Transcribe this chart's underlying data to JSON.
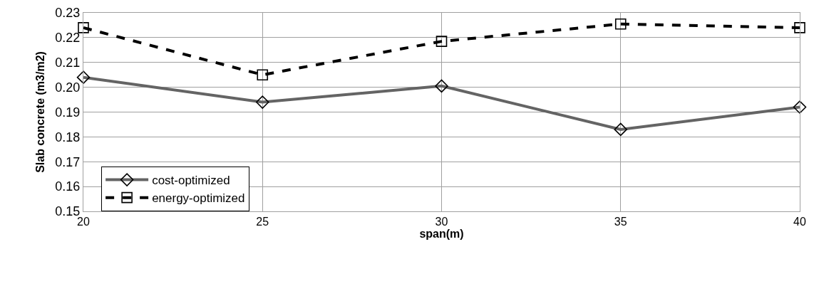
{
  "chart_data": {
    "type": "line",
    "xlabel": "span(m)",
    "ylabel": "Slab concrete (m3/m2)",
    "x": [
      20,
      25,
      30,
      35,
      40
    ],
    "series": [
      {
        "name": "cost-optimized",
        "color": "#646464",
        "values": [
          0.204,
          0.194,
          0.2005,
          0.183,
          0.192
        ],
        "marker": "diamond",
        "line_style": "solid"
      },
      {
        "name": "energy-optimized",
        "color": "#000000",
        "values": [
          0.224,
          0.205,
          0.2185,
          0.2255,
          0.224
        ],
        "marker": "square",
        "line_style": "dashed"
      }
    ],
    "xlim": [
      20,
      40
    ],
    "xticks": [
      20,
      25,
      30,
      35,
      40
    ],
    "ylim": [
      0.15,
      0.23
    ],
    "yticks": [
      {
        "value": 0.15,
        "label": "0.15"
      },
      {
        "value": 0.16,
        "label": "0.16"
      },
      {
        "value": 0.17,
        "label": "0.17"
      },
      {
        "value": 0.18,
        "label": "0.18"
      },
      {
        "value": 0.19,
        "label": "0.19"
      },
      {
        "value": 0.2,
        "label": "0.20"
      },
      {
        "value": 0.21,
        "label": "0.21"
      },
      {
        "value": 0.22,
        "label": "0.22"
      },
      {
        "value": 0.23,
        "label": "0.23"
      }
    ],
    "grid": true,
    "legend": "bottom left"
  }
}
